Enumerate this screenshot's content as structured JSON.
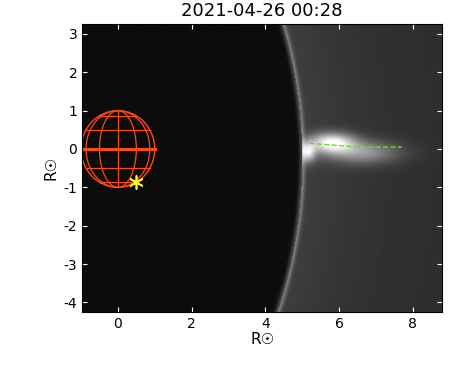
{
  "chart_data": {
    "type": "image",
    "title": "2021-04-26 00:28",
    "x_label": "R☉",
    "y_label": "R☉",
    "xlim": [
      -0.97,
      8.8
    ],
    "ylim": [
      -4.25,
      3.26
    ],
    "xticks": [
      0,
      2,
      4,
      6,
      8
    ],
    "yticks": [
      -4,
      -3,
      -2,
      -1,
      0,
      1,
      2,
      3
    ],
    "series": [
      {
        "type": "globe",
        "color": "#ff4a10",
        "x": [
          0
        ],
        "y": [
          0
        ],
        "radius": 1
      },
      {
        "type": "scatter",
        "color": "#ffff30",
        "marker": "asterisk",
        "x": [
          0.5
        ],
        "y": [
          -0.85
        ]
      },
      {
        "type": "line",
        "color": "#66dd22",
        "line_style": "dashed",
        "x": [
          5.2,
          6.5,
          7.7
        ],
        "y": [
          0.15,
          0.05,
          0.05
        ]
      }
    ]
  }
}
